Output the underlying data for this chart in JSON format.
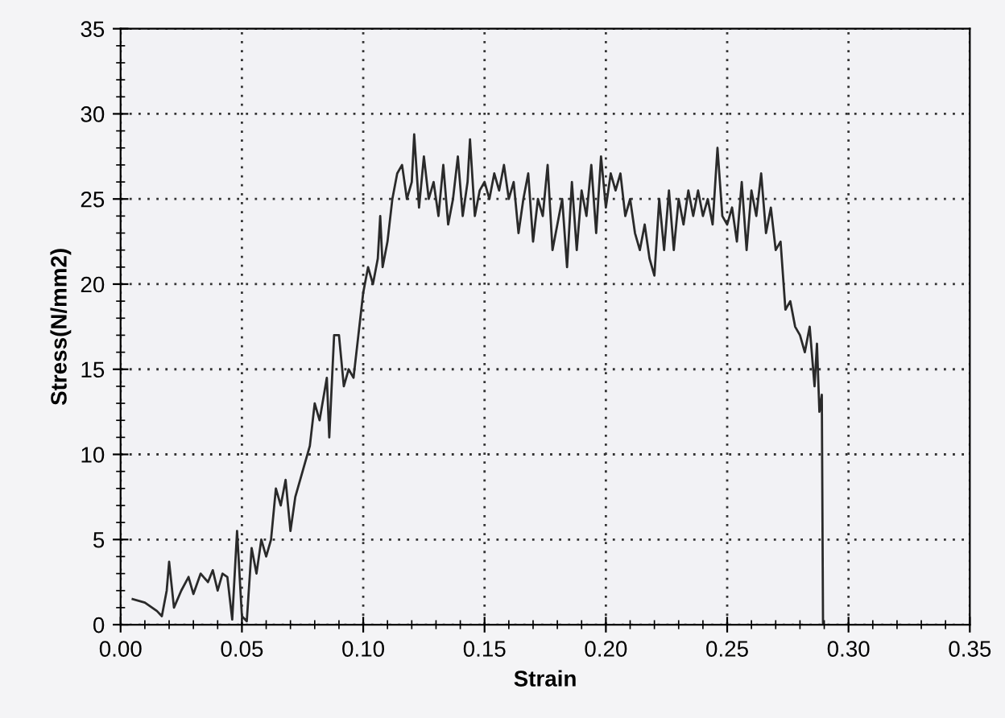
{
  "chart_data": {
    "type": "line",
    "xlabel": "Strain",
    "ylabel": "Stress(N/mm2)",
    "xlim": [
      0,
      0.35
    ],
    "ylim": [
      0,
      35
    ],
    "xticks": [
      {
        "value": 0,
        "label": "0.00"
      },
      {
        "value": 0.05,
        "label": "0.05"
      },
      {
        "value": 0.1,
        "label": "0.10"
      },
      {
        "value": 0.15,
        "label": "0.15"
      },
      {
        "value": 0.2,
        "label": "0.20"
      },
      {
        "value": 0.25,
        "label": "0.25"
      },
      {
        "value": 0.3,
        "label": "0.30"
      },
      {
        "value": 0.35,
        "label": "0.35"
      }
    ],
    "yticks": [
      0,
      5,
      10,
      15,
      20,
      25,
      30,
      35
    ],
    "grid": true,
    "legend": false,
    "marker": "none",
    "line_style": "solid",
    "series": [
      {
        "color": "#2a2a2a",
        "x": [
          0.005,
          0.01,
          0.015,
          0.017,
          0.019,
          0.02,
          0.022,
          0.025,
          0.028,
          0.03,
          0.033,
          0.036,
          0.038,
          0.04,
          0.042,
          0.044,
          0.046,
          0.048,
          0.05,
          0.052,
          0.054,
          0.056,
          0.058,
          0.06,
          0.062,
          0.064,
          0.066,
          0.068,
          0.07,
          0.072,
          0.075,
          0.078,
          0.08,
          0.082,
          0.085,
          0.086,
          0.088,
          0.09,
          0.092,
          0.094,
          0.096,
          0.098,
          0.1,
          0.102,
          0.104,
          0.106,
          0.107,
          0.108,
          0.11,
          0.112,
          0.114,
          0.116,
          0.118,
          0.12,
          0.121,
          0.123,
          0.125,
          0.127,
          0.129,
          0.131,
          0.133,
          0.135,
          0.137,
          0.139,
          0.141,
          0.143,
          0.144,
          0.146,
          0.148,
          0.15,
          0.152,
          0.154,
          0.156,
          0.158,
          0.16,
          0.162,
          0.164,
          0.166,
          0.168,
          0.17,
          0.172,
          0.174,
          0.176,
          0.178,
          0.18,
          0.182,
          0.184,
          0.186,
          0.188,
          0.19,
          0.192,
          0.194,
          0.196,
          0.198,
          0.2,
          0.202,
          0.204,
          0.206,
          0.208,
          0.21,
          0.212,
          0.214,
          0.216,
          0.218,
          0.22,
          0.222,
          0.224,
          0.226,
          0.228,
          0.23,
          0.232,
          0.234,
          0.236,
          0.238,
          0.24,
          0.242,
          0.244,
          0.246,
          0.248,
          0.25,
          0.252,
          0.254,
          0.256,
          0.258,
          0.26,
          0.262,
          0.264,
          0.266,
          0.268,
          0.27,
          0.272,
          0.274,
          0.276,
          0.278,
          0.28,
          0.282,
          0.284,
          0.286,
          0.287,
          0.288,
          0.289,
          0.2895
        ],
        "values": [
          1.5,
          1.3,
          0.8,
          0.5,
          2.0,
          3.7,
          1.0,
          2.0,
          2.8,
          1.8,
          3.0,
          2.5,
          3.2,
          2.0,
          3.0,
          2.8,
          0.3,
          5.5,
          0.5,
          0.2,
          4.5,
          3.0,
          5.0,
          4.0,
          5.0,
          8.0,
          7.0,
          8.5,
          5.5,
          7.5,
          9.0,
          10.5,
          13.0,
          12.0,
          14.5,
          11.0,
          17.0,
          17.0,
          14.0,
          15.0,
          14.5,
          17.0,
          19.5,
          21.0,
          20.0,
          21.5,
          24.0,
          21.0,
          22.5,
          25.0,
          26.5,
          27.0,
          25.0,
          26.0,
          28.8,
          24.5,
          27.5,
          25.0,
          26.0,
          24.0,
          27.0,
          23.5,
          25.0,
          27.5,
          24.0,
          26.0,
          28.5,
          24.0,
          25.5,
          26.0,
          25.0,
          26.5,
          25.5,
          27.0,
          25.0,
          26.0,
          23.0,
          25.0,
          26.5,
          22.5,
          25.0,
          24.0,
          27.0,
          22.0,
          23.5,
          25.0,
          21.0,
          26.0,
          22.0,
          25.5,
          24.0,
          27.0,
          23.0,
          27.5,
          24.5,
          26.5,
          25.5,
          26.5,
          24.0,
          25.0,
          23.0,
          22.0,
          23.5,
          21.5,
          20.5,
          25.0,
          22.0,
          25.5,
          22.0,
          25.0,
          23.5,
          25.5,
          24.0,
          25.5,
          24.0,
          25.0,
          23.5,
          28.0,
          24.0,
          23.5,
          24.5,
          22.5,
          26.0,
          22.0,
          25.5,
          24.0,
          26.5,
          23.0,
          24.5,
          22.0,
          22.5,
          18.5,
          19.0,
          17.5,
          17.0,
          16.0,
          17.5,
          14.0,
          16.5,
          12.5,
          13.5,
          0
        ]
      }
    ]
  }
}
